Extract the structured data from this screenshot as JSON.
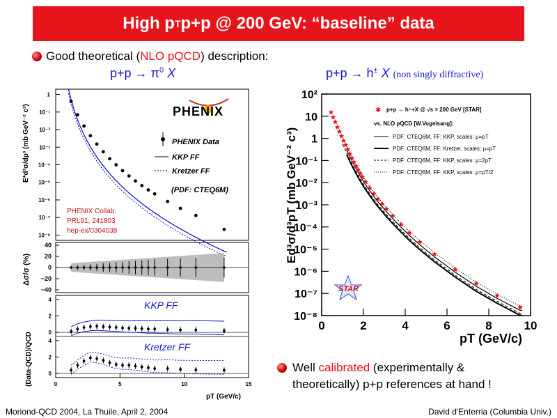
{
  "slide": {
    "title_a": "High p",
    "title_sub": "T",
    "title_b": " p+p @ 200 GeV: “baseline” data",
    "bullet1_a": "Good theoretical (",
    "bullet1_red": "NLO pQCD",
    "bullet1_b": ") description:",
    "left_head": "p+p → π",
    "left_head_sup": "0",
    "left_head_x": " X",
    "right_head": "p+p → h",
    "right_head_sup": "±",
    "right_head_x": " X",
    "right_head_note": "(non singly diffractive)",
    "bullet2_a": "Well ",
    "bullet2_red": "calibrated",
    "bullet2_b": " (experimentally &",
    "bullet2_c": "theoretically) p+p references at hand !",
    "footer_left": "Moriond-QCD 2004, La Thuile, April 2, 2004",
    "footer_right": "David d'Enterria (Columbia Univ.)"
  },
  "chart_data": [
    {
      "type": "scatter",
      "panel": "left-main",
      "logo": "PHENIX",
      "ylabel": "E*d³σ/dp³ (mb GeV⁻² c³)",
      "ytick_labels": [
        "1",
        "10⁻¹",
        "10⁻²",
        "10⁻³",
        "10⁻⁴",
        "10⁻⁵",
        "10⁻⁶",
        "10⁻⁷",
        "10⁻⁸"
      ],
      "legend": [
        "PHENIX Data",
        "KKP FF",
        "Kretzer FF",
        "(PDF: CTEQ6M)"
      ],
      "annotation": [
        "PHENIX Collab.",
        "PRL91, 241803",
        "hep-ex/0304038"
      ],
      "xlim": [
        0,
        15
      ],
      "ylim_log10": [
        -8.3,
        0.3
      ],
      "x": [
        1.2,
        1.7,
        2.2,
        2.7,
        3.2,
        3.7,
        4.2,
        4.7,
        5.2,
        5.7,
        6.2,
        6.7,
        7.2,
        7.7,
        8.7,
        9.7,
        10.9,
        13.1
      ],
      "y": [
        0.4,
        0.07,
        0.016,
        0.0045,
        0.0015,
        0.00055,
        0.00022,
        0.0001,
        4.6e-05,
        2.3e-05,
        1.2e-05,
        6.5e-06,
        3.7e-06,
        2.2e-06,
        8.2e-07,
        3.3e-07,
        1.3e-07,
        2.1e-08
      ]
    },
    {
      "type": "scatter",
      "panel": "left-systematic",
      "ylabel": "Δσ/σ (%)",
      "ytick_labels": [
        "40",
        "20",
        "0",
        "−20",
        "−40"
      ],
      "ylim": [
        -45,
        45
      ],
      "x": [
        1.2,
        1.7,
        2.2,
        2.7,
        3.2,
        3.7,
        4.2,
        4.7,
        5.2,
        5.7,
        6.2,
        6.7,
        7.2,
        7.7,
        8.7,
        9.7,
        10.9,
        13.1
      ],
      "values": [
        0,
        0,
        0,
        0,
        0,
        0,
        0,
        0,
        0,
        0,
        0,
        0,
        0,
        0,
        0,
        0,
        0,
        0
      ]
    },
    {
      "type": "line",
      "panel": "left-ratio",
      "ylabel": "(Data-QCD)/QCD",
      "label_top": "KKP  FF",
      "label_bottom": "Kretzer FF",
      "ytick_labels_top": [
        "4",
        "2",
        "0"
      ],
      "ytick_labels_bottom": [
        "4",
        "2",
        "0"
      ],
      "xtick_labels": [
        "0",
        "5",
        "10",
        "15"
      ],
      "xlabel": "pT (GeV/c)",
      "xlim": [
        0,
        15
      ],
      "ylim": [
        -0.5,
        4.5
      ],
      "series": [
        {
          "name": "KKP FF",
          "x": [
            1.2,
            1.7,
            2.2,
            2.7,
            3.2,
            3.7,
            4.2,
            4.7,
            5.2,
            5.7,
            6.2,
            6.7,
            7.2,
            7.7,
            8.7,
            9.7,
            10.9,
            13.1
          ],
          "values": [
            0.1,
            0.4,
            0.6,
            0.7,
            0.75,
            0.7,
            0.65,
            0.6,
            0.55,
            0.5,
            0.5,
            0.45,
            0.4,
            0.4,
            0.35,
            0.3,
            0.3,
            0.2
          ]
        },
        {
          "name": "Kretzer FF",
          "x": [
            1.2,
            1.7,
            2.2,
            2.7,
            3.2,
            3.7,
            4.2,
            4.7,
            5.2,
            5.7,
            6.2,
            6.7,
            7.2,
            7.7,
            8.7,
            9.7,
            10.9,
            13.1
          ],
          "values": [
            0.4,
            1.0,
            1.5,
            1.9,
            1.8,
            1.6,
            1.3,
            1.1,
            1.0,
            1.0,
            0.9,
            0.8,
            0.7,
            0.6,
            0.6,
            0.5,
            0.45,
            0.4
          ]
        }
      ]
    },
    {
      "type": "scatter",
      "panel": "right",
      "ylabel": "Ed³σ/d³pT (mb GeV⁻² c³)",
      "xlabel": "pT (GeV/c)",
      "xtick_labels": [
        "0",
        "2",
        "4",
        "6",
        "8",
        "10"
      ],
      "ytick_labels": [
        "10²",
        "10",
        "1",
        "10⁻¹",
        "10⁻²",
        "10⁻³",
        "10⁻⁴",
        "10⁻⁵",
        "10⁻⁶",
        "10⁻⁷",
        "10⁻⁸"
      ],
      "xlim": [
        0,
        10
      ],
      "ylim_log10": [
        -8,
        2
      ],
      "logo": "STAR",
      "legend": [
        "p+p → h⁺+X @ √s = 200 GeV [STAR]",
        "vs. NLO pQCD [W.Vogelsang]:",
        "PDF: CTEQ6M, FF: KKP, scales: μ=pT",
        "PDF: CTEQ6M, FF: Kretzer, scales: μ=pT",
        "PDF: CTEQ6M, FF: KKP, scales: μ=2pT",
        "PDF: CTEQ6M, FF: KKP, scales: μ=pT/2"
      ],
      "x": [
        0.45,
        0.55,
        0.65,
        0.75,
        0.85,
        0.95,
        1.05,
        1.15,
        1.25,
        1.35,
        1.45,
        1.55,
        1.65,
        1.75,
        1.85,
        1.95,
        2.1,
        2.3,
        2.5,
        2.7,
        2.9,
        3.1,
        3.4,
        3.8,
        4.2,
        4.7,
        5.4,
        6.4,
        7.4,
        8.4,
        9.5
      ],
      "y": [
        15,
        9,
        5.5,
        3.2,
        2.0,
        1.25,
        0.78,
        0.5,
        0.32,
        0.2,
        0.13,
        0.085,
        0.056,
        0.038,
        0.026,
        0.018,
        0.011,
        0.0058,
        0.0032,
        0.0018,
        0.0011,
        0.00065,
        0.00032,
        0.00013,
        5.5e-05,
        2.1e-05,
        6e-06,
        1.2e-06,
        2.8e-07,
        8e-08,
        2.3e-08
      ]
    }
  ]
}
